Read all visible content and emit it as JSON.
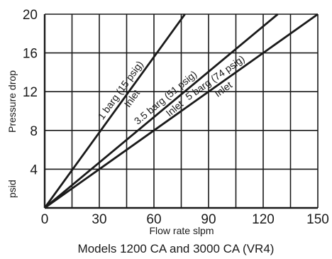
{
  "chart_data": {
    "type": "line",
    "xlabel": "Flow rate slpm",
    "ylabel_upper": "Pressure drop",
    "ylabel_lower": "psid",
    "caption": "Models 1200 CA and 3000 CA (VR4)",
    "xlim": [
      0,
      150
    ],
    "ylim": [
      0,
      20
    ],
    "x_ticks": [
      0,
      30,
      60,
      90,
      120,
      150
    ],
    "x_tick_labels": [
      "0",
      "30",
      "60",
      "90",
      "120",
      "150"
    ],
    "y_ticks": [
      4,
      8,
      12,
      16,
      20
    ],
    "y_tick_labels": [
      "4",
      "8",
      "12",
      "16",
      "20"
    ],
    "x_grid": [
      15,
      30,
      45,
      60,
      75,
      90,
      105,
      120,
      135,
      150
    ],
    "y_grid": [
      4,
      8,
      12,
      16,
      20
    ],
    "grid": true,
    "series": [
      {
        "line1": "1 barg (15 psig)",
        "line2": "Inlet",
        "x": [
          0,
          77
        ],
        "y": [
          0,
          20
        ]
      },
      {
        "line1": "3.5 barg (51 psig)",
        "line2": "Inlet",
        "x": [
          0,
          128
        ],
        "y": [
          0,
          20
        ]
      },
      {
        "line1": "5 barg (74 psig)",
        "line2": "Inlet",
        "x": [
          0,
          150
        ],
        "y": [
          0,
          20
        ]
      }
    ],
    "colors": {
      "line": "#1a1a1a",
      "grid": "#1a1a1a",
      "text": "#1a1a1a"
    }
  }
}
